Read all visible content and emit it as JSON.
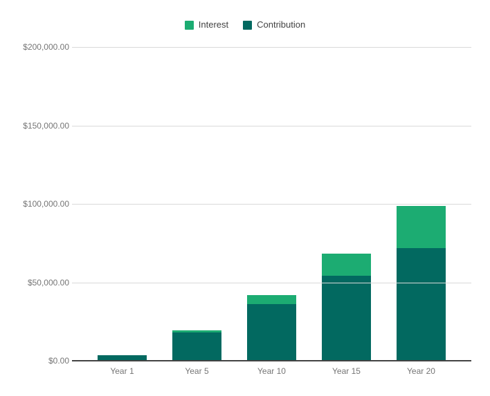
{
  "chart_data": {
    "type": "bar",
    "stacked": true,
    "categories": [
      "Year 1",
      "Year 5",
      "Year 10",
      "Year 15",
      "Year 20"
    ],
    "series": [
      {
        "name": "Contribution",
        "color": "#026960",
        "values": [
          3600,
          18000,
          36000,
          54000,
          72000
        ]
      },
      {
        "name": "Interest",
        "color": "#1cac72",
        "values": [
          50,
          1400,
          5900,
          14100,
          26500
        ]
      }
    ],
    "ylim": [
      0,
      200000
    ],
    "y_tick_values": [
      0,
      50000,
      100000,
      150000,
      200000
    ],
    "y_tick_labels": [
      "$0.00",
      "$50,000.00",
      "$100,000.00",
      "$150,000.00",
      "$200,000.00"
    ],
    "grid": true,
    "legend_position": "top"
  },
  "legend": {
    "items": [
      {
        "label": "Interest",
        "color": "#1cac72"
      },
      {
        "label": "Contribution",
        "color": "#026960"
      }
    ]
  },
  "colors": {
    "background": "#ffffff",
    "gridline": "#d9d9d9",
    "axis_line": "#424242",
    "axis_label_text": "#757575",
    "legend_text": "#424242"
  }
}
